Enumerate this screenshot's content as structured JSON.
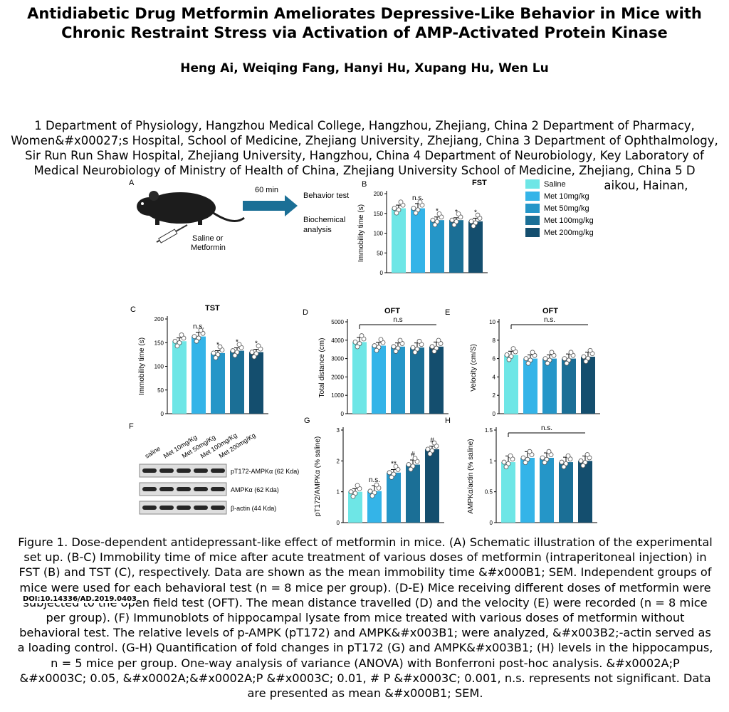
{
  "title": "Antidiabetic Drug Metformin Ameliorates Depressive-Like Behavior in Mice with Chronic Restraint Stress via Activation of AMP-Activated Protein Kinase",
  "authors": "Heng Ai, Weiqing Fang, Hanyi Hu, Xupang Hu, Wen Lu",
  "affiliations": "1 Department of Physiology, Hangzhou Medical College, Hangzhou, Zhejiang, China 2 Department of Pharmacy, Women&#x00027;s Hospital, School of Medicine, Zhejiang University, Zhejiang, China 3 Department of Ophthalmology, Sir Run Run Shaw Hospital, Zhejiang University, Hangzhou, China 4 Department of Neurobiology, Key Laboratory of Medical Neurobiology of Ministry of Health of China, Zhejiang University School of Medicine, Zhejiang, China 5 D",
  "affiliations_tail": "Haikou, Hainan,",
  "doi": "DOI:10.14336/AD.2019.0403",
  "caption": "Figure 1.   Dose-dependent antidepressant-like effect of metformin in mice. (A) Schematic illustration of the experimental set up. (B-C) Immobility time of mice after acute treatment of various doses of metformin (intraperitoneal injection) in FST (B) and TST (C), respectively. Data are shown as the mean immobility time &#x000B1; SEM. Independent groups of mice were used for each behavioral test (n = 8 mice per group). (D-E) Mice receiving different doses of metformin were subjected to the open field test (OFT). The mean distance travelled (D) and the velocity (E) were recorded (n = 8 mice per group). (F) Immunoblots of hippocampal lysate from mice treated with various doses of metformin without behavioral test. The relative levels of p-AMPK (pT172) and AMPK&#x003B1; were analyzed, &#x003B2;-actin served as a loading control. (G-H) Quantification of fold changes in pT172 (G) and AMPK&#x003B1; (H) levels in the hippocampus, n = 5 mice per group. One-way analysis of variance (ANOVA) with Bonferroni post-hoc analysis. &#x0002A;P &#x0003C; 0.05, &#x0002A;&#x0002A;P &#x0003C; 0.01, # P &#x0003C; 0.001, n.s. represents not significant. Data are presented as mean &#x000B1; SEM.",
  "figure": {
    "colors": [
      "#6ee6e6",
      "#34b4e8",
      "#2596c8",
      "#1b6f96",
      "#144e6e"
    ],
    "legend": [
      "Saline",
      "Met 10mg/kg",
      "Met 50mg/kg",
      "Met 100mg/kg",
      "Met 200mg/kg"
    ],
    "schematic": {
      "arrow_label": "60 min",
      "out1": "Behavior test",
      "out2": "Biochemical",
      "out3": "analysis",
      "inj1": "Saline or",
      "inj2": "Metformin"
    },
    "western": {
      "lanes": [
        "saline",
        "Met 10mg/Kg",
        "Met 50mg/Kg",
        "Met 100mg/Kg",
        "Met 200mg/Kg"
      ],
      "bands": [
        "pT172-AMPKα (62 Kda)",
        "AMPKα (62 Kda)",
        "β-actin (44 Kda)"
      ]
    }
  },
  "chart_data": [
    {
      "panel": "A",
      "type": "diagram"
    },
    {
      "panel": "B",
      "type": "bar",
      "title": "FST",
      "ylabel": "Immobility time (s)",
      "ylim": [
        0,
        200
      ],
      "ticks": [
        0,
        50,
        100,
        150,
        200
      ],
      "values": [
        163,
        163,
        133,
        133,
        130
      ],
      "errors": [
        8,
        12,
        8,
        6,
        8
      ],
      "sig": [
        "",
        "n.s.",
        "*",
        "*",
        "*"
      ],
      "bracket": null
    },
    {
      "panel": "C",
      "type": "bar",
      "title": "TST",
      "ylabel": "Immobility time (s)",
      "ylim": [
        0,
        200
      ],
      "ticks": [
        0,
        50,
        100,
        150,
        200
      ],
      "values": [
        153,
        163,
        128,
        133,
        130
      ],
      "errors": [
        7,
        9,
        5,
        6,
        6
      ],
      "sig": [
        "",
        "n.s.",
        "*",
        "*",
        "*"
      ],
      "bracket": null
    },
    {
      "panel": "D",
      "type": "bar",
      "title": "OFT",
      "ylabel": "Total distance (cm)",
      "ylim": [
        0,
        5000
      ],
      "ticks": [
        0,
        1000,
        2000,
        3000,
        4000,
        5000
      ],
      "values": [
        3900,
        3700,
        3650,
        3600,
        3650
      ],
      "errors": [
        250,
        180,
        200,
        250,
        250
      ],
      "sig": [
        "",
        "",
        "",
        "",
        ""
      ],
      "bracket": "n.s"
    },
    {
      "panel": "E",
      "type": "bar",
      "title": "OFT",
      "ylabel": "Velocity (cm/S)",
      "ylim": [
        0,
        10
      ],
      "ticks": [
        0,
        2,
        4,
        6,
        8,
        10
      ],
      "values": [
        6.4,
        6.0,
        6.0,
        6.0,
        6.2
      ],
      "errors": [
        0.4,
        0.4,
        0.4,
        0.5,
        0.5
      ],
      "sig": [
        "",
        "",
        "",
        "",
        ""
      ],
      "bracket": "n.s."
    },
    {
      "panel": "F",
      "type": "diagram"
    },
    {
      "panel": "G",
      "type": "bar",
      "title": "",
      "ylabel": "pT172/AMPKα (% saline)",
      "ylim": [
        0,
        3
      ],
      "ticks": [
        0,
        1,
        2,
        3
      ],
      "values": [
        1.0,
        1.02,
        1.62,
        1.88,
        2.38
      ],
      "errors": [
        0.1,
        0.18,
        0.1,
        0.15,
        0.1
      ],
      "sig": [
        "",
        "n.s.",
        "**",
        "#",
        "#"
      ],
      "bracket": null
    },
    {
      "panel": "H",
      "type": "bar",
      "title": "",
      "ylabel": "AMPKα/actin (% saline)",
      "ylim": [
        0,
        1.5
      ],
      "ticks": [
        0,
        0.5,
        1.0,
        1.5
      ],
      "values": [
        0.98,
        1.05,
        1.05,
        0.98,
        1.0
      ],
      "errors": [
        0.1,
        0.1,
        0.08,
        0.08,
        0.08
      ],
      "sig": [
        "",
        "",
        "",
        "",
        ""
      ],
      "bracket": "n.s."
    }
  ]
}
